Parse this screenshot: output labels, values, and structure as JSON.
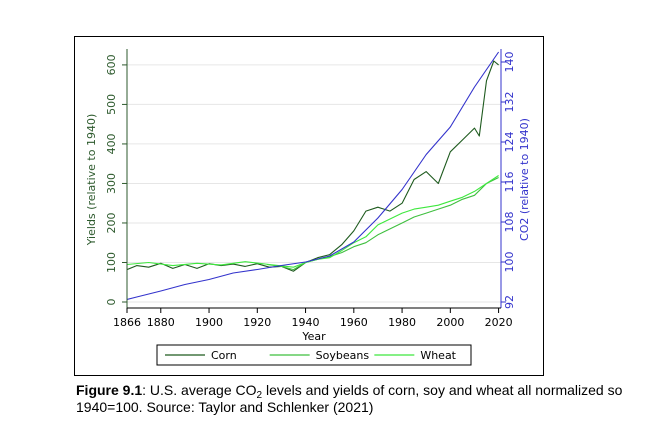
{
  "chart_data": {
    "type": "line",
    "xlabel": "Year",
    "ylabel_left": "Yields (relative to 1940)",
    "ylabel_right": "CO2 (relative to 1940)",
    "xlim": [
      1866,
      2021
    ],
    "ylim_left": [
      0,
      620
    ],
    "ylim_right": [
      92,
      141
    ],
    "x_ticks": [
      1866,
      1880,
      1900,
      1920,
      1940,
      1960,
      1980,
      2000,
      2020
    ],
    "y_ticks_left": [
      0,
      100,
      200,
      300,
      400,
      500,
      600
    ],
    "y_ticks_right": [
      92,
      100,
      108,
      116,
      124,
      132,
      140
    ],
    "grid": "horizontal",
    "legend": "bottom",
    "series": [
      {
        "name": "Corn",
        "color": "#1e5a1e",
        "axis": "left",
        "x": [
          1866,
          1870,
          1875,
          1880,
          1885,
          1890,
          1895,
          1900,
          1905,
          1910,
          1915,
          1920,
          1925,
          1930,
          1935,
          1940,
          1945,
          1950,
          1955,
          1960,
          1965,
          1970,
          1975,
          1980,
          1985,
          1990,
          1995,
          2000,
          2005,
          2010,
          2012,
          2015,
          2018,
          2020
        ],
        "y": [
          82,
          92,
          88,
          98,
          85,
          95,
          85,
          97,
          92,
          96,
          90,
          97,
          88,
          90,
          78,
          100,
          112,
          120,
          145,
          180,
          230,
          240,
          230,
          250,
          310,
          330,
          300,
          380,
          410,
          440,
          420,
          560,
          610,
          600
        ]
      },
      {
        "name": "Soybeans",
        "color": "#3fbf3f",
        "axis": "left",
        "x": [
          1924,
          1930,
          1935,
          1940,
          1945,
          1950,
          1955,
          1960,
          1965,
          1970,
          1975,
          1980,
          1985,
          1990,
          1995,
          2000,
          2005,
          2010,
          2015,
          2020
        ],
        "y": [
          95,
          90,
          82,
          100,
          108,
          115,
          125,
          140,
          150,
          170,
          185,
          200,
          215,
          225,
          235,
          245,
          260,
          270,
          300,
          315
        ]
      },
      {
        "name": "Wheat",
        "color": "#3ee83e",
        "axis": "left",
        "x": [
          1866,
          1875,
          1885,
          1895,
          1905,
          1915,
          1925,
          1935,
          1940,
          1945,
          1950,
          1955,
          1960,
          1965,
          1970,
          1975,
          1980,
          1985,
          1990,
          1995,
          2000,
          2005,
          2010,
          2015,
          2020
        ],
        "y": [
          95,
          100,
          92,
          98,
          94,
          102,
          95,
          88,
          100,
          108,
          112,
          130,
          150,
          165,
          195,
          210,
          225,
          235,
          240,
          245,
          255,
          265,
          280,
          300,
          320
        ]
      },
      {
        "name": "CO2",
        "color": "#3333cc",
        "axis": "right",
        "x": [
          1866,
          1870,
          1880,
          1890,
          1900,
          1910,
          1920,
          1930,
          1940,
          1950,
          1960,
          1970,
          1980,
          1990,
          2000,
          2010,
          2020
        ],
        "y": [
          92.5,
          93.0,
          94.2,
          95.5,
          96.5,
          97.8,
          98.5,
          99.3,
          100.0,
          101.2,
          104.0,
          108.8,
          114.5,
          121.5,
          127.0,
          135.0,
          142.0
        ]
      }
    ]
  },
  "caption": {
    "label": "Figure 9.1",
    "text_before_sub": ": U.S. average CO",
    "sub": "2",
    "text_after_sub": " levels and yields of corn, soy and wheat all normalized so 1940=100. Source: Taylor and Schlenker (2021)"
  }
}
